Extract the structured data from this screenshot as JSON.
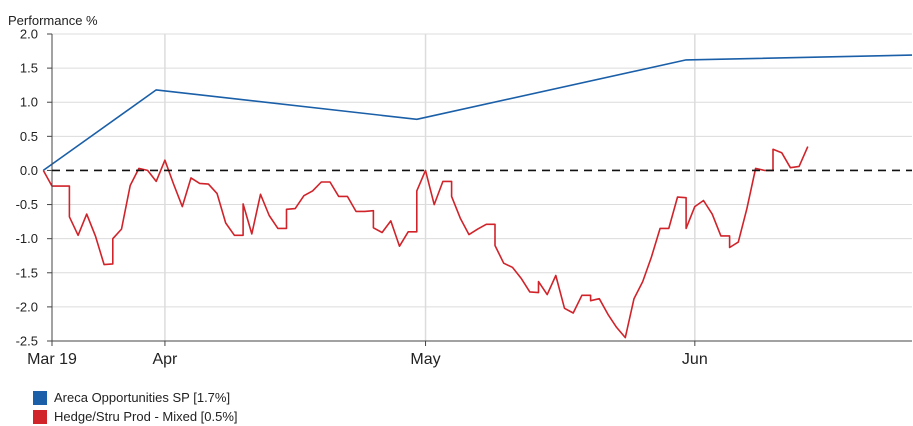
{
  "chart_data": {
    "type": "line",
    "ylabel": "Performance %",
    "ylim": [
      -2.5,
      2.0
    ],
    "yticks": [
      2.0,
      1.5,
      1.0,
      0.5,
      0.0,
      -0.5,
      -1.0,
      -1.5,
      -2.0,
      -2.5
    ],
    "ytick_labels": [
      "2.0",
      "1.5",
      "1.0",
      "0.5",
      "0.0",
      "-0.5",
      "-1.0",
      "-1.5",
      "-2.0",
      "-2.5"
    ],
    "xlim": [
      "2024-03-19",
      "2024-06-26"
    ],
    "xticks": [
      {
        "date": "2024-03-19",
        "label": "Mar 19"
      },
      {
        "date": "2024-04-01",
        "label": "Apr"
      },
      {
        "date": "2024-05-01",
        "label": "May"
      },
      {
        "date": "2024-06-01",
        "label": "Jun"
      }
    ],
    "grid": true,
    "zero_line": "dashed",
    "legend_position": "bottom-left",
    "series": [
      {
        "name": "Areca Opportunities SP [1.7%]",
        "color": "#1a5fa8",
        "points": [
          [
            "2024-03-18",
            0.0
          ],
          [
            "2024-03-31",
            1.18
          ],
          [
            "2024-04-30",
            0.75
          ],
          [
            "2024-05-31",
            1.62
          ],
          [
            "2024-06-26",
            1.69
          ]
        ]
      },
      {
        "name": "Hedge/Stru Prod - Mixed [0.5%]",
        "color": "#d0232a",
        "points": [
          [
            "2024-03-18",
            0.0
          ],
          [
            "2024-03-19",
            -0.23
          ],
          [
            "2024-03-20",
            -0.23
          ],
          [
            "2024-03-21",
            -0.23
          ],
          [
            "2024-03-21",
            -0.68
          ],
          [
            "2024-03-22",
            -0.95
          ],
          [
            "2024-03-23",
            -0.64
          ],
          [
            "2024-03-24",
            -0.96
          ],
          [
            "2024-03-25",
            -1.38
          ],
          [
            "2024-03-26",
            -1.37
          ],
          [
            "2024-03-26",
            -1.0
          ],
          [
            "2024-03-27",
            -0.86
          ],
          [
            "2024-03-28",
            -0.22
          ],
          [
            "2024-03-29",
            0.03
          ],
          [
            "2024-03-30",
            0.0
          ],
          [
            "2024-03-31",
            -0.16
          ],
          [
            "2024-04-01",
            0.15
          ],
          [
            "2024-04-02",
            -0.2
          ],
          [
            "2024-04-03",
            -0.53
          ],
          [
            "2024-04-04",
            -0.11
          ],
          [
            "2024-04-05",
            -0.19
          ],
          [
            "2024-04-06",
            -0.2
          ],
          [
            "2024-04-07",
            -0.34
          ],
          [
            "2024-04-08",
            -0.77
          ],
          [
            "2024-04-09",
            -0.95
          ],
          [
            "2024-04-10",
            -0.95
          ],
          [
            "2024-04-10",
            -0.49
          ],
          [
            "2024-04-11",
            -0.93
          ],
          [
            "2024-04-12",
            -0.35
          ],
          [
            "2024-04-13",
            -0.66
          ],
          [
            "2024-04-14",
            -0.85
          ],
          [
            "2024-04-15",
            -0.85
          ],
          [
            "2024-04-15",
            -0.57
          ],
          [
            "2024-04-16",
            -0.56
          ],
          [
            "2024-04-17",
            -0.37
          ],
          [
            "2024-04-18",
            -0.3
          ],
          [
            "2024-04-19",
            -0.17
          ],
          [
            "2024-04-20",
            -0.17
          ],
          [
            "2024-04-21",
            -0.38
          ],
          [
            "2024-04-22",
            -0.38
          ],
          [
            "2024-04-23",
            -0.6
          ],
          [
            "2024-04-24",
            -0.6
          ],
          [
            "2024-04-25",
            -0.59
          ],
          [
            "2024-04-25",
            -0.84
          ],
          [
            "2024-04-26",
            -0.91
          ],
          [
            "2024-04-27",
            -0.74
          ],
          [
            "2024-04-28",
            -1.11
          ],
          [
            "2024-04-29",
            -0.9
          ],
          [
            "2024-04-30",
            -0.9
          ],
          [
            "2024-04-30",
            -0.3
          ],
          [
            "2024-05-01",
            0.0
          ],
          [
            "2024-05-02",
            -0.5
          ],
          [
            "2024-05-03",
            -0.16
          ],
          [
            "2024-05-04",
            -0.16
          ],
          [
            "2024-05-04",
            -0.38
          ],
          [
            "2024-05-05",
            -0.7
          ],
          [
            "2024-05-06",
            -0.94
          ],
          [
            "2024-05-07",
            -0.86
          ],
          [
            "2024-05-08",
            -0.79
          ],
          [
            "2024-05-09",
            -0.79
          ],
          [
            "2024-05-09",
            -1.1
          ],
          [
            "2024-05-10",
            -1.36
          ],
          [
            "2024-05-11",
            -1.42
          ],
          [
            "2024-05-12",
            -1.58
          ],
          [
            "2024-05-13",
            -1.78
          ],
          [
            "2024-05-14",
            -1.79
          ],
          [
            "2024-05-14",
            -1.63
          ],
          [
            "2024-05-15",
            -1.82
          ],
          [
            "2024-05-16",
            -1.54
          ],
          [
            "2024-05-17",
            -2.02
          ],
          [
            "2024-05-18",
            -2.09
          ],
          [
            "2024-05-19",
            -1.83
          ],
          [
            "2024-05-20",
            -1.83
          ],
          [
            "2024-05-20",
            -1.91
          ],
          [
            "2024-05-21",
            -1.88
          ],
          [
            "2024-05-22",
            -2.11
          ],
          [
            "2024-05-23",
            -2.3
          ],
          [
            "2024-05-24",
            -2.45
          ],
          [
            "2024-05-25",
            -1.88
          ],
          [
            "2024-05-26",
            -1.63
          ],
          [
            "2024-05-27",
            -1.27
          ],
          [
            "2024-05-28",
            -0.85
          ],
          [
            "2024-05-29",
            -0.85
          ],
          [
            "2024-05-30",
            -0.39
          ],
          [
            "2024-05-31",
            -0.4
          ],
          [
            "2024-05-31",
            -0.85
          ],
          [
            "2024-06-01",
            -0.53
          ],
          [
            "2024-06-02",
            -0.44
          ],
          [
            "2024-06-03",
            -0.64
          ],
          [
            "2024-06-04",
            -0.96
          ],
          [
            "2024-06-05",
            -0.96
          ],
          [
            "2024-06-05",
            -1.13
          ],
          [
            "2024-06-06",
            -1.05
          ],
          [
            "2024-06-07",
            -0.56
          ],
          [
            "2024-06-08",
            0.03
          ],
          [
            "2024-06-09",
            0.0
          ],
          [
            "2024-06-10",
            0.0
          ],
          [
            "2024-06-10",
            0.31
          ],
          [
            "2024-06-11",
            0.26
          ],
          [
            "2024-06-12",
            0.04
          ],
          [
            "2024-06-13",
            0.06
          ],
          [
            "2024-06-14",
            0.35
          ]
        ]
      }
    ]
  },
  "legend": [
    {
      "label": "Areca Opportunities SP [1.7%]",
      "color": "#1a5fa8"
    },
    {
      "label": "Hedge/Stru Prod - Mixed [0.5%]",
      "color": "#d0232a"
    }
  ]
}
